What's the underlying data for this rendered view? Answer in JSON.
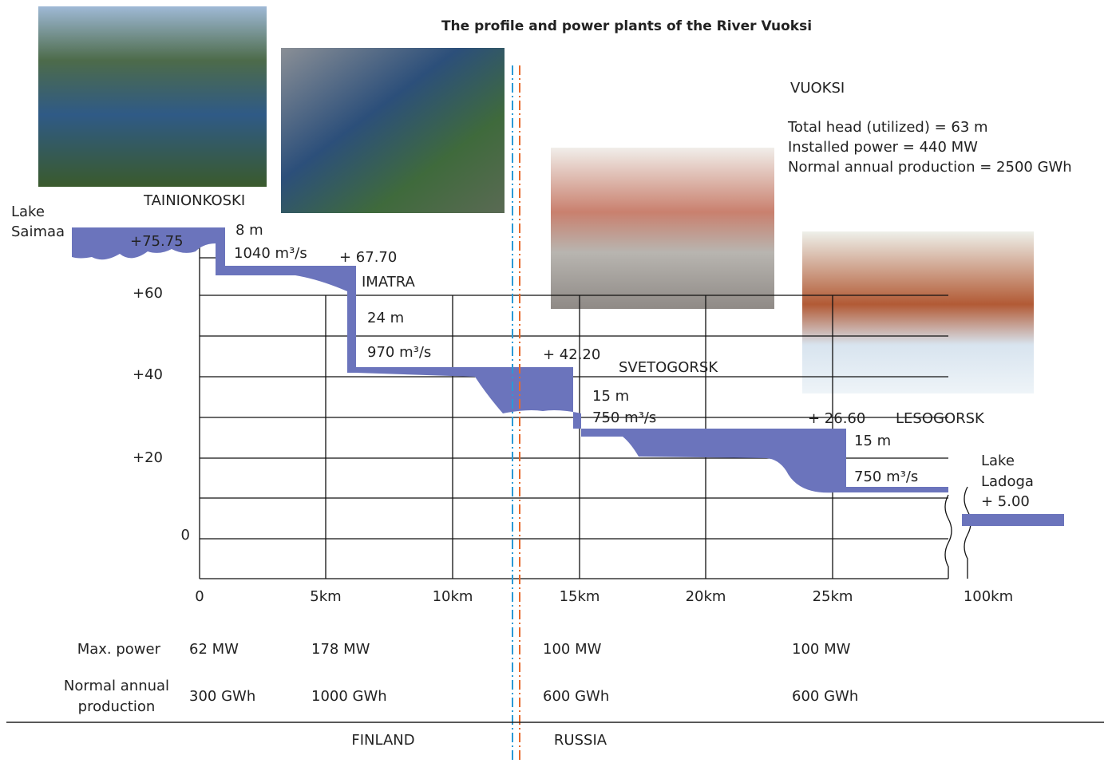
{
  "title": "The profile and power plants of the River Vuoksi",
  "summary": {
    "name": "VUOKSI",
    "lines": [
      "Total head (utilized) = 63 m",
      "Installed power = 440 MW",
      "Normal annual production = 2500 GWh"
    ]
  },
  "lake_saimaa": [
    "Lake",
    "Saimaa"
  ],
  "lake_ladoga": [
    "Lake",
    "Ladoga",
    "+ 5.00"
  ],
  "levels": [
    "+75.75",
    "+ 67.70",
    "+ 42.20",
    "+ 26.60"
  ],
  "plants": [
    {
      "name": "TAINIONKOSKI",
      "head": "8 m",
      "flow": "1040 m³/s",
      "power": "62 MW",
      "production": "300 GWh"
    },
    {
      "name": "IMATRA",
      "head": "24 m",
      "flow": "970 m³/s",
      "power": "178 MW",
      "production": "1000 GWh"
    },
    {
      "name": "SVETOGORSK",
      "head": "15 m",
      "flow": "750 m³/s",
      "power": "100 MW",
      "production": "600 GWh"
    },
    {
      "name": "LESOGORSK",
      "head": "15 m",
      "flow": "750 m³/s",
      "power": "100 MW",
      "production": "600 GWh"
    }
  ],
  "elevation_labels": [
    "+60",
    "+40",
    "+20",
    "0"
  ],
  "distance_labels": [
    "0",
    "5km",
    "10km",
    "15km",
    "20km",
    "25km",
    "100km"
  ],
  "row_labels": {
    "power": "Max. power",
    "production": [
      "Normal annual",
      "production"
    ]
  },
  "countries": [
    "FINLAND",
    "RUSSIA"
  ]
}
